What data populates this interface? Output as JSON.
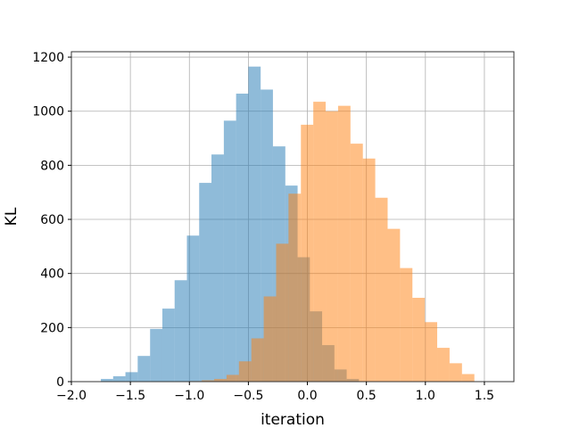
{
  "chart_data": {
    "type": "bar",
    "title": "",
    "xlabel": "iteration",
    "ylabel": "KL",
    "xlim": [
      -2.0,
      1.75
    ],
    "ylim": [
      0,
      1220
    ],
    "grid": true,
    "legend": "none",
    "x_ticks": [
      -2.0,
      -1.5,
      -1.0,
      -0.5,
      0.0,
      0.5,
      1.0,
      1.5
    ],
    "x_tick_labels": [
      "−2.0",
      "−1.5",
      "−1.0",
      "−0.5",
      "0.0",
      "0.5",
      "1.0",
      "1.5"
    ],
    "y_ticks": [
      0,
      200,
      400,
      600,
      800,
      1000,
      1200
    ],
    "y_tick_labels": [
      "0",
      "200",
      "400",
      "600",
      "800",
      "1000",
      "1200"
    ],
    "series": [
      {
        "color": "#1f77b4",
        "opacity": 0.5,
        "bin_edges": [
          -1.75,
          -1.646,
          -1.542,
          -1.438,
          -1.333,
          -1.229,
          -1.125,
          -1.021,
          -0.917,
          -0.813,
          -0.708,
          -0.604,
          -0.5,
          -0.396,
          -0.292,
          -0.187,
          -0.083,
          0.021,
          0.125,
          0.229,
          0.333,
          0.437
        ],
        "values": [
          10,
          20,
          35,
          95,
          195,
          270,
          375,
          540,
          735,
          840,
          965,
          1065,
          1165,
          1080,
          870,
          725,
          460,
          260,
          135,
          45,
          10
        ]
      },
      {
        "color": "#ff7f0e",
        "opacity": 0.5,
        "bin_edges": [
          -1.0,
          -0.895,
          -0.79,
          -0.685,
          -0.58,
          -0.475,
          -0.37,
          -0.265,
          -0.16,
          -0.055,
          0.05,
          0.155,
          0.26,
          0.365,
          0.47,
          0.575,
          0.68,
          0.785,
          0.89,
          0.995,
          1.1,
          1.205,
          1.31,
          1.415
        ],
        "values": [
          2,
          5,
          10,
          25,
          75,
          160,
          315,
          510,
          695,
          950,
          1035,
          1000,
          1020,
          880,
          825,
          680,
          565,
          420,
          310,
          220,
          125,
          68,
          28
        ]
      }
    ]
  }
}
